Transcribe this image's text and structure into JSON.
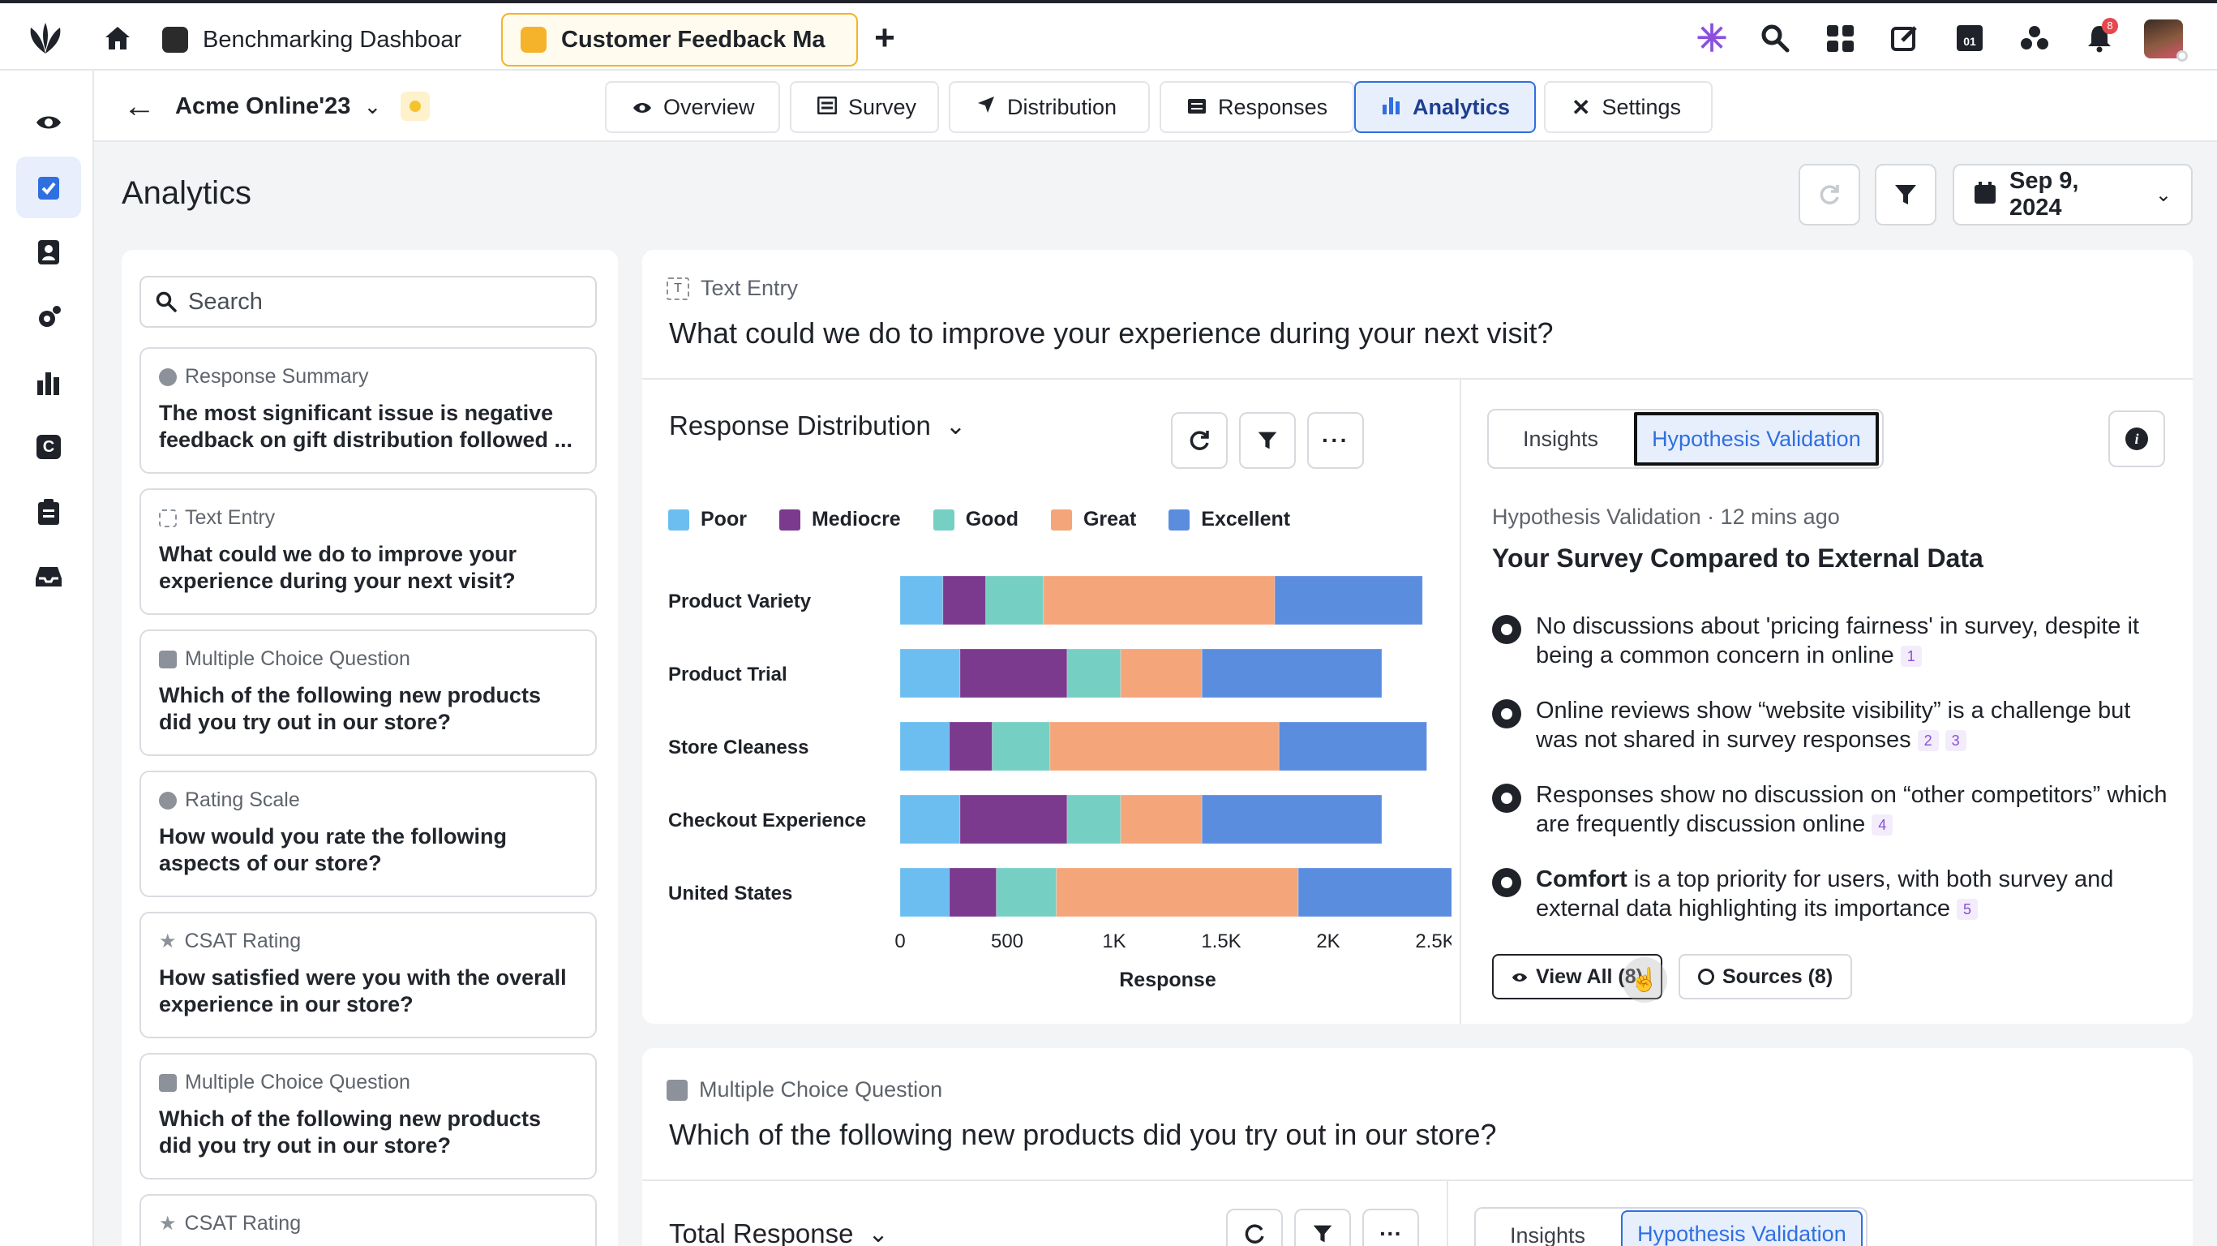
{
  "topbar": {
    "tabs": [
      {
        "label": "Benchmarking Dashboar",
        "active": false
      },
      {
        "label": "Customer Feedback Ma",
        "active": true
      }
    ],
    "notification_count": "8",
    "calendar_day": "01",
    "icons": [
      "sprinklr-logo-icon",
      "home-icon",
      "plus-icon",
      "sparkle-icon",
      "search-icon",
      "apps-grid-icon",
      "compose-icon",
      "calendar-icon",
      "integrations-icon",
      "bell-icon",
      "avatar"
    ]
  },
  "rail": {
    "items": [
      "eye-icon",
      "survey-icon",
      "contacts-icon",
      "settings-gear-icon",
      "analytics-icon",
      "c-app-icon",
      "clipboard-icon",
      "inbox-icon"
    ]
  },
  "subheader": {
    "project": "Acme Online'23",
    "status_color": "#f4c430",
    "nav": [
      {
        "label": "Overview",
        "icon": "eye-icon"
      },
      {
        "label": "Survey",
        "icon": "survey-icon"
      },
      {
        "label": "Distribution",
        "icon": "send-icon"
      },
      {
        "label": "Responses",
        "icon": "list-icon"
      },
      {
        "label": "Analytics",
        "icon": "bar-chart-icon",
        "active": true
      },
      {
        "label": "Settings",
        "icon": "tools-icon"
      }
    ]
  },
  "page": {
    "title": "Analytics",
    "date": "Sep 9, 2024"
  },
  "sidebar": {
    "search_placeholder": "Search",
    "cards": [
      {
        "type": "Response Summary",
        "text": "The most significant issue is negative feedback on gift distribution followed ..."
      },
      {
        "type": "Text Entry",
        "text": "What could we do to improve your experience during your next visit?"
      },
      {
        "type": "Multiple Choice Question",
        "text": "Which of the following new products did you try out in our store?"
      },
      {
        "type": "Rating Scale",
        "text": "How would you rate the following aspects of our store?"
      },
      {
        "type": "CSAT Rating",
        "text": "How satisfied were you with the overall experience in our store?"
      },
      {
        "type": "Multiple Choice Question",
        "text": "Which of the following new products did you try out in our store?"
      },
      {
        "type": "CSAT Rating",
        "text": ""
      }
    ]
  },
  "question1": {
    "type": "Text Entry",
    "title": "What could we do to improve your experience during your next visit?",
    "panel_title": "Response Distribution"
  },
  "chart_data": {
    "type": "bar",
    "orientation": "horizontal",
    "stacked": true,
    "categories": [
      "Product Variety",
      "Product Trial",
      "Store Cleaness",
      "Checkout Experience",
      "United States"
    ],
    "series": [
      {
        "name": "Poor",
        "color": "#6cbef0",
        "values": [
          200,
          280,
          230,
          280,
          230
        ]
      },
      {
        "name": "Mediocre",
        "color": "#7b3a8e",
        "values": [
          200,
          500,
          200,
          500,
          220
        ]
      },
      {
        "name": "Good",
        "color": "#76cfc3",
        "values": [
          270,
          250,
          270,
          250,
          280
        ]
      },
      {
        "name": "Great",
        "color": "#f4a57a",
        "values": [
          1080,
          380,
          1070,
          380,
          1130
        ]
      },
      {
        "name": "Excellent",
        "color": "#5b8ddf",
        "values": [
          690,
          840,
          690,
          840,
          730
        ]
      }
    ],
    "xticks": [
      "0",
      "500",
      "1K",
      "1.5K",
      "2K",
      "2.5K"
    ],
    "xlim": [
      0,
      2500
    ],
    "xlabel": "Response",
    "grid": false,
    "legend": "top"
  },
  "insights": {
    "tabs": [
      "Insights",
      "Hypothesis Validation"
    ],
    "meta": "Hypothesis Validation · 12 mins ago",
    "heading": "Your Survey Compared to External Data",
    "items": [
      {
        "bold": "No discussions about 'pricing fairness'",
        "bold_style": "semi",
        "text": " in survey, despite it being a common concern in online",
        "cites": [
          "1"
        ]
      },
      {
        "bold": "",
        "text": "Online reviews show “website visibility” is a challenge but was not shared in survey responses",
        "cites": [
          "2",
          "3"
        ]
      },
      {
        "bold": "",
        "text": "Responses show no discussion on “other competitors” which are frequently discussion online",
        "cites": [
          "4"
        ]
      },
      {
        "bold": "Comfort",
        "text": " is a top priority for users, with both survey and external data highlighting its importance",
        "cites": [
          "5"
        ]
      }
    ],
    "view_all": "View All (8)",
    "sources": "Sources (8)"
  },
  "question2": {
    "type": "Multiple Choice Question",
    "title": "Which of the following new products did you try out in our store?",
    "panel_title": "Total Response",
    "tabs": [
      "Insights",
      "Hypothesis Validation"
    ]
  }
}
